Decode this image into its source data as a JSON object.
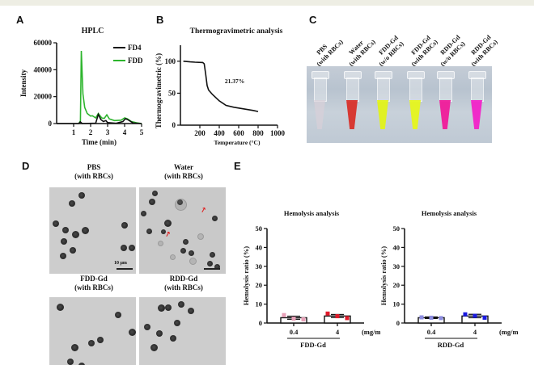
{
  "panel_labels": {
    "a": "A",
    "b": "B",
    "c": "C",
    "d": "D",
    "e": "E"
  },
  "colors": {
    "fd4": "#111111",
    "fdd": "#2db52d",
    "fdd_gd_low": "#e8a0b8",
    "fdd_gd_high": "#e01a2a",
    "rdd_gd_low": "#8c8ce0",
    "rdd_gd_high": "#1a1ae0",
    "band": "#eeeee4"
  },
  "chart_data": [
    {
      "id": "A",
      "type": "line",
      "title": "HPLC",
      "xlabel": "Time (min)",
      "ylabel": "Intensity",
      "xlim": [
        0,
        5
      ],
      "ylim": [
        0,
        60000
      ],
      "xticks": [
        "1",
        "2",
        "3",
        "4",
        "5"
      ],
      "yticks": [
        "0",
        "20000",
        "40000",
        "60000"
      ],
      "legend": {
        "placement": "top-right",
        "entries": [
          "FD4",
          "FDD"
        ]
      },
      "series": [
        {
          "name": "FD4",
          "points": [
            [
              0,
              0
            ],
            [
              1.3,
              0
            ],
            [
              1.4,
              1200
            ],
            [
              1.5,
              0
            ],
            [
              2.3,
              300
            ],
            [
              2.45,
              6800
            ],
            [
              2.6,
              3000
            ],
            [
              2.75,
              1500
            ],
            [
              2.9,
              2200
            ],
            [
              3.0,
              700
            ],
            [
              3.5,
              200
            ],
            [
              3.9,
              1500
            ],
            [
              4.05,
              3600
            ],
            [
              4.2,
              2800
            ],
            [
              4.5,
              400
            ],
            [
              5,
              0
            ]
          ]
        },
        {
          "name": "FDD",
          "points": [
            [
              1.3,
              0
            ],
            [
              1.4,
              2000
            ],
            [
              1.45,
              54000
            ],
            [
              1.55,
              22000
            ],
            [
              1.65,
              12000
            ],
            [
              1.8,
              7500
            ],
            [
              2.0,
              5500
            ],
            [
              2.1,
              5800
            ],
            [
              2.3,
              4200
            ],
            [
              2.45,
              7500
            ],
            [
              2.65,
              4200
            ],
            [
              2.8,
              3800
            ],
            [
              2.95,
              6500
            ],
            [
              3.1,
              3500
            ],
            [
              3.4,
              2200
            ],
            [
              3.8,
              2500
            ],
            [
              4.0,
              4200
            ],
            [
              4.15,
              3600
            ],
            [
              4.4,
              1500
            ],
            [
              4.7,
              600
            ],
            [
              5,
              0
            ]
          ]
        }
      ]
    },
    {
      "id": "B",
      "type": "line",
      "title": "Thermogravimetric analysis",
      "xlabel": "Temperature (°C)",
      "ylabel": "Thermogravimetric (%)",
      "xlim": [
        0,
        1000
      ],
      "ylim": [
        0,
        120
      ],
      "xticks": [
        "200",
        "400",
        "600",
        "800",
        "1000"
      ],
      "yticks": [
        "0",
        "50",
        "100"
      ],
      "annotation": "21.37%",
      "series": [
        {
          "name": "TGA",
          "points": [
            [
              30,
              100
            ],
            [
              100,
              99
            ],
            [
              150,
              98.5
            ],
            [
              230,
              98
            ],
            [
              245,
              96
            ],
            [
              260,
              80
            ],
            [
              275,
              62
            ],
            [
              290,
              55
            ],
            [
              330,
              48
            ],
            [
              400,
              38
            ],
            [
              470,
              31
            ],
            [
              550,
              28
            ],
            [
              650,
              25.5
            ],
            [
              750,
              23
            ],
            [
              800,
              21.4
            ]
          ]
        }
      ]
    },
    {
      "id": "E1",
      "type": "bar",
      "title": "Hemolysis analysis",
      "xlabel": "FDD-Gd",
      "unit": "(mg/mL)",
      "ylabel": "Hemolysis ratio (%)",
      "ylim": [
        0,
        50
      ],
      "yticks": [
        "0",
        "10",
        "20",
        "30",
        "40",
        "50"
      ],
      "categories": [
        "0.4",
        "4"
      ],
      "values": [
        2.8,
        3.7
      ],
      "errors": [
        0.8,
        0.8
      ],
      "points": [
        [
          4.2,
          2.3,
          1.9
        ],
        [
          5.0,
          3.6,
          2.6
        ]
      ]
    },
    {
      "id": "E2",
      "type": "bar",
      "title": "Hemolysis analysis",
      "xlabel": "RDD-Gd",
      "unit": "(mg/mL)",
      "ylabel": "Hemolysis ratio (%)",
      "ylim": [
        0,
        50
      ],
      "yticks": [
        "0",
        "10",
        "20",
        "30",
        "40",
        "50"
      ],
      "categories": [
        "0.4",
        "4"
      ],
      "values": [
        2.8,
        3.7
      ],
      "errors": [
        0.4,
        0.9
      ],
      "points": [
        [
          3.0,
          2.8,
          2.6
        ],
        [
          4.6,
          3.8,
          2.8
        ]
      ]
    }
  ],
  "panel_c": {
    "tubes": [
      {
        "label": "PBS\n(with RBCs)",
        "line1": "PBS",
        "line2": "(with RBCs)",
        "color": "#d8d0d8"
      },
      {
        "label": "Water (with RBCs)",
        "line1": "Water",
        "line2": "(with RBCs)",
        "color": "#d8302a"
      },
      {
        "label": "FDD-Gd (w/o RBCs)",
        "line1": "FDD-Gd",
        "line2": "(w/o RBCs)",
        "color": "#e2f21a"
      },
      {
        "label": "FDD-Gd (with RBCs)",
        "line1": "FDD-Gd",
        "line2": "(with RBCs)",
        "color": "#e6f51c"
      },
      {
        "label": "RDD-Gd (w/o RBCs)",
        "line1": "RDD-Gd",
        "line2": "(w/o RBCs)",
        "color": "#f01a9a"
      },
      {
        "label": "RDD-Gd (with RBCs)",
        "line1": "RDD-Gd",
        "line2": "(with RBCs)",
        "color": "#f222c8"
      }
    ]
  },
  "panel_d": {
    "images": [
      {
        "title1": "PBS",
        "title2": "(with RBCs)"
      },
      {
        "title1": "Water",
        "title2": "(with RBCs)"
      },
      {
        "title1": "FDD-Gd",
        "title2": "(with RBCs)"
      },
      {
        "title1": "RDD-Gd",
        "title2": "(with RBCs)"
      }
    ],
    "scale_bar": "10 μm"
  }
}
